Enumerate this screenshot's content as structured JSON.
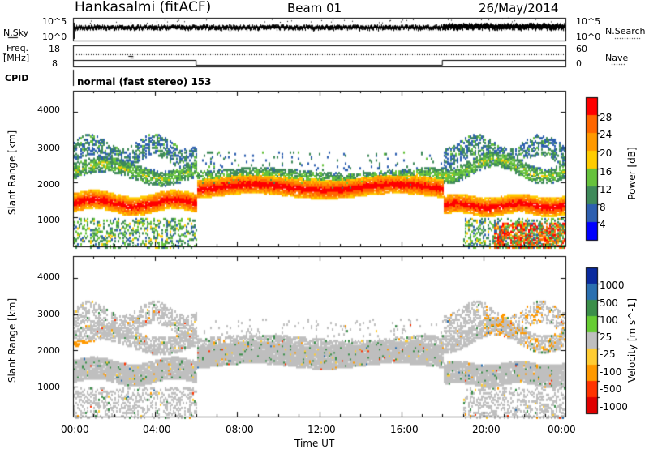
{
  "header": {
    "station": "Hankasalmi (fitACF)",
    "beam": "Beam 01",
    "date": "26/May/2014"
  },
  "top_panels": {
    "nsky_label": "N.Sky",
    "nsky_ticks": [
      "10^5",
      "10^0"
    ],
    "nsearch_label": "N.Search",
    "nsearch_ticks": [
      "10^5",
      "10^0"
    ],
    "freq_label_line1": "Freq.",
    "freq_label_line2": "[MHz]",
    "freq_ticks": [
      "18",
      "8"
    ],
    "nave_label": "Nave",
    "nave_ticks": [
      "60",
      "0"
    ],
    "cpid_label": "CPID",
    "cpid_text": "normal (fast stereo) 153"
  },
  "colors": {
    "power_scale": [
      "#0000ff",
      "#2d5fb0",
      "#3f8a5a",
      "#66c23c",
      "#ffcc00",
      "#ff9900",
      "#ff6600",
      "#ff0000"
    ],
    "velocity_scale": [
      "#0a2a9e",
      "#2a6fb0",
      "#3b8f4a",
      "#66cc33",
      "#bfbfbf",
      "#ffcc33",
      "#ff9900",
      "#ff3300",
      "#e00000"
    ],
    "nsky_trace": "#000000",
    "frame": "#000000"
  },
  "chart_data": [
    {
      "type": "heatmap",
      "name": "power",
      "ylabel": "Slant Range [km]",
      "y_ticks": [
        1000,
        2000,
        3000,
        4000
      ],
      "ylim": [
        180,
        4600
      ],
      "x_ticks": [
        "00:00",
        "04:00",
        "08:00",
        "12:00",
        "16:00",
        "20:00",
        "00:00"
      ],
      "xlim_hours": [
        0,
        24
      ],
      "colorbar_label": "Power [dB]",
      "colorbar_ticks": [
        4,
        8,
        12,
        16,
        20,
        24,
        28
      ],
      "colorbar_range": [
        0,
        30
      ]
    },
    {
      "type": "heatmap",
      "name": "velocity",
      "ylabel": "Slant Range [km]",
      "y_ticks": [
        1000,
        2000,
        3000,
        4000
      ],
      "ylim": [
        180,
        4600
      ],
      "x_ticks": [
        "00:00",
        "04:00",
        "08:00",
        "12:00",
        "16:00",
        "20:00",
        "00:00"
      ],
      "xlim_hours": [
        0,
        24
      ],
      "xlabel": "Time UT",
      "colorbar_label": "Velocity [m s^-1]",
      "colorbar_ticks": [
        "1000",
        "500",
        "100",
        "25",
        "-25",
        "-100",
        "-500",
        "-1000"
      ]
    }
  ]
}
